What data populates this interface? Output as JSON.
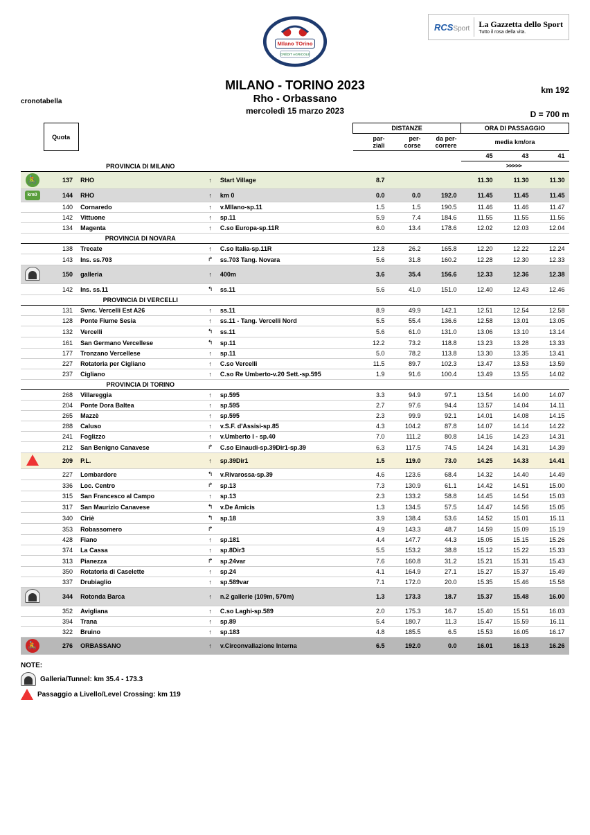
{
  "sponsors": {
    "rcs": "RCS",
    "rcs_suffix": "Sport",
    "gazzetta": "La Gazzetta dello Sport",
    "tagline": "Tutto il rosa della vita."
  },
  "header": {
    "cronotabella": "cronotabella",
    "title": "MILANO - TORINO 2023",
    "subtitle": "Rho - Orbassano",
    "date": "mercoledì 15 marzo 2023",
    "km": "km 192",
    "d": "D = 700 m"
  },
  "columns": {
    "quota": "Quota",
    "distanze": "DISTANZE",
    "parziali": "par-\nziali",
    "percorse": "per-\ncorse",
    "dapercorrere": "da per-\ncorrere",
    "passaggio": "ORA DI PASSAGGIO",
    "media": "media km/ora",
    "s45": "45",
    "s43": "43",
    "s41": "41",
    "arrows": ">>>>>"
  },
  "sections": [
    {
      "title": "PROVINCIA DI MILANO",
      "rows": [
        {
          "icon": "bike-green",
          "quota": "137",
          "loc": "RHO",
          "dir": "↑",
          "road": "Start Village",
          "pz": "8.7",
          "pc": "",
          "dp": "",
          "t45": "11.30",
          "t43": "11.30",
          "t41": "11.30",
          "style": "green"
        },
        {
          "icon": "km0",
          "quota": "144",
          "loc": "RHO",
          "dir": "↑",
          "road": "km 0",
          "pz": "0.0",
          "pc": "0.0",
          "dp": "192.0",
          "t45": "11.45",
          "t43": "11.45",
          "t41": "11.45",
          "style": "grey"
        },
        {
          "quota": "140",
          "loc": "Cornaredo",
          "dir": "↑",
          "road": "v.MIlano-sp.11",
          "pz": "1.5",
          "pc": "1.5",
          "dp": "190.5",
          "t45": "11.46",
          "t43": "11.46",
          "t41": "11.47"
        },
        {
          "quota": "142",
          "loc": "Vittuone",
          "dir": "↑",
          "road": "sp.11",
          "pz": "5.9",
          "pc": "7.4",
          "dp": "184.6",
          "t45": "11.55",
          "t43": "11.55",
          "t41": "11.56"
        },
        {
          "quota": "134",
          "loc": "Magenta",
          "dir": "↑",
          "road": "C.so Europa-sp.11R",
          "pz": "6.0",
          "pc": "13.4",
          "dp": "178.6",
          "t45": "12.02",
          "t43": "12.03",
          "t41": "12.04"
        }
      ]
    },
    {
      "title": "PROVINCIA DI NOVARA",
      "rows": [
        {
          "quota": "138",
          "loc": "Trecate",
          "dir": "↑",
          "road": "C.so Italia-sp.11R",
          "pz": "12.8",
          "pc": "26.2",
          "dp": "165.8",
          "t45": "12.20",
          "t43": "12.22",
          "t41": "12.24"
        },
        {
          "quota": "143",
          "loc": "Ins. ss.703",
          "dir": "↱",
          "road": "ss.703 Tang. Novara",
          "pz": "5.6",
          "pc": "31.8",
          "dp": "160.2",
          "t45": "12.28",
          "t43": "12.30",
          "t41": "12.33"
        },
        {
          "icon": "tunnel",
          "quota": "150",
          "loc": "galleria",
          "dir": "↑",
          "road": "400m",
          "pz": "3.6",
          "pc": "35.4",
          "dp": "156.6",
          "t45": "12.33",
          "t43": "12.36",
          "t41": "12.38",
          "style": "grey"
        },
        {
          "quota": "142",
          "loc": "Ins. ss.11",
          "dir": "↰",
          "road": "ss.11",
          "pz": "5.6",
          "pc": "41.0",
          "dp": "151.0",
          "t45": "12.40",
          "t43": "12.43",
          "t41": "12.46"
        }
      ]
    },
    {
      "title": "PROVINCIA DI VERCELLI",
      "rows": [
        {
          "quota": "131",
          "loc": "Svnc. Vercelli Est A26",
          "dir": "↑",
          "road": "ss.11",
          "pz": "8.9",
          "pc": "49.9",
          "dp": "142.1",
          "t45": "12.51",
          "t43": "12.54",
          "t41": "12.58"
        },
        {
          "quota": "128",
          "loc": "Ponte Fiume Sesia",
          "dir": "↑",
          "road": "ss.11 - Tang. Vercelli Nord",
          "pz": "5.5",
          "pc": "55.4",
          "dp": "136.6",
          "t45": "12.58",
          "t43": "13.01",
          "t41": "13.05"
        },
        {
          "quota": "132",
          "loc": "Vercelli",
          "dir": "↰",
          "road": "ss.11",
          "pz": "5.6",
          "pc": "61.0",
          "dp": "131.0",
          "t45": "13.06",
          "t43": "13.10",
          "t41": "13.14"
        },
        {
          "quota": "161",
          "loc": "San Germano Vercellese",
          "dir": "↰",
          "road": "sp.11",
          "pz": "12.2",
          "pc": "73.2",
          "dp": "118.8",
          "t45": "13.23",
          "t43": "13.28",
          "t41": "13.33"
        },
        {
          "quota": "177",
          "loc": "Tronzano Vercellese",
          "dir": "↑",
          "road": "sp.11",
          "pz": "5.0",
          "pc": "78.2",
          "dp": "113.8",
          "t45": "13.30",
          "t43": "13.35",
          "t41": "13.41"
        },
        {
          "quota": "227",
          "loc": "Rotatoria per Cigliano",
          "dir": "↑",
          "road": "C.so Vercelli",
          "pz": "11.5",
          "pc": "89.7",
          "dp": "102.3",
          "t45": "13.47",
          "t43": "13.53",
          "t41": "13.59"
        },
        {
          "quota": "237",
          "loc": "Cigliano",
          "dir": "↑",
          "road": "C.so Re Umberto-v.20 Sett.-sp.595",
          "pz": "1.9",
          "pc": "91.6",
          "dp": "100.4",
          "t45": "13.49",
          "t43": "13.55",
          "t41": "14.02"
        }
      ]
    },
    {
      "title": "PROVINCIA DI TORINO",
      "rows": [
        {
          "quota": "268",
          "loc": "Villareggia",
          "dir": "↑",
          "road": "sp.595",
          "pz": "3.3",
          "pc": "94.9",
          "dp": "97.1",
          "t45": "13.54",
          "t43": "14.00",
          "t41": "14.07"
        },
        {
          "quota": "204",
          "loc": "Ponte Dora Baltea",
          "dir": "↑",
          "road": "sp.595",
          "pz": "2.7",
          "pc": "97.6",
          "dp": "94.4",
          "t45": "13.57",
          "t43": "14.04",
          "t41": "14.11"
        },
        {
          "quota": "265",
          "loc": "Mazzè",
          "dir": "↑",
          "road": "sp.595",
          "pz": "2.3",
          "pc": "99.9",
          "dp": "92.1",
          "t45": "14.01",
          "t43": "14.08",
          "t41": "14.15"
        },
        {
          "quota": "288",
          "loc": "Caluso",
          "dir": "↑",
          "road": "v.S.F. d'Assisi-sp.85",
          "pz": "4.3",
          "pc": "104.2",
          "dp": "87.8",
          "t45": "14.07",
          "t43": "14.14",
          "t41": "14.22"
        },
        {
          "quota": "241",
          "loc": "Foglizzo",
          "dir": "↑",
          "road": "v.Umberto I - sp.40",
          "pz": "7.0",
          "pc": "111.2",
          "dp": "80.8",
          "t45": "14.16",
          "t43": "14.23",
          "t41": "14.31"
        },
        {
          "quota": "212",
          "loc": "San Benigno Canavese",
          "dir": "↱",
          "road": "C.so Einaudi-sp.39Dir1-sp.39",
          "pz": "6.3",
          "pc": "117.5",
          "dp": "74.5",
          "t45": "14.24",
          "t43": "14.31",
          "t41": "14.39"
        },
        {
          "icon": "pl",
          "quota": "209",
          "loc": "P.L.",
          "dir": "↑",
          "road": "sp.39Dir1",
          "pz": "1.5",
          "pc": "119.0",
          "dp": "73.0",
          "t45": "14.25",
          "t43": "14.33",
          "t41": "14.41",
          "style": "yellow"
        },
        {
          "quota": "227",
          "loc": "Lombardore",
          "dir": "↰",
          "road": "v.Rivarossa-sp.39",
          "pz": "4.6",
          "pc": "123.6",
          "dp": "68.4",
          "t45": "14.32",
          "t43": "14.40",
          "t41": "14.49"
        },
        {
          "quota": "336",
          "loc": "Loc. Centro",
          "dir": "↱",
          "road": "sp.13",
          "pz": "7.3",
          "pc": "130.9",
          "dp": "61.1",
          "t45": "14.42",
          "t43": "14.51",
          "t41": "15.00"
        },
        {
          "quota": "315",
          "loc": "San Francesco al Campo",
          "dir": "↑",
          "road": "sp.13",
          "pz": "2.3",
          "pc": "133.2",
          "dp": "58.8",
          "t45": "14.45",
          "t43": "14.54",
          "t41": "15.03"
        },
        {
          "quota": "317",
          "loc": "San Maurizio Canavese",
          "dir": "↰",
          "road": "v.De Amicis",
          "pz": "1.3",
          "pc": "134.5",
          "dp": "57.5",
          "t45": "14.47",
          "t43": "14.56",
          "t41": "15.05"
        },
        {
          "quota": "340",
          "loc": "Ciriè",
          "dir": "↰",
          "road": "sp.18",
          "pz": "3.9",
          "pc": "138.4",
          "dp": "53.6",
          "t45": "14.52",
          "t43": "15.01",
          "t41": "15.11"
        },
        {
          "quota": "353",
          "loc": "Robassomero",
          "dir": "↱",
          "road": "",
          "pz": "4.9",
          "pc": "143.3",
          "dp": "48.7",
          "t45": "14.59",
          "t43": "15.09",
          "t41": "15.19"
        },
        {
          "quota": "428",
          "loc": "Fiano",
          "dir": "↑",
          "road": "sp.181",
          "pz": "4.4",
          "pc": "147.7",
          "dp": "44.3",
          "t45": "15.05",
          "t43": "15.15",
          "t41": "15.26"
        },
        {
          "quota": "374",
          "loc": "La Cassa",
          "dir": "↑",
          "road": "sp.8Dir3",
          "pz": "5.5",
          "pc": "153.2",
          "dp": "38.8",
          "t45": "15.12",
          "t43": "15.22",
          "t41": "15.33"
        },
        {
          "quota": "313",
          "loc": "Pianezza",
          "dir": "↱",
          "road": "sp.24var",
          "pz": "7.6",
          "pc": "160.8",
          "dp": "31.2",
          "t45": "15.21",
          "t43": "15.31",
          "t41": "15.43"
        },
        {
          "quota": "350",
          "loc": "Rotatoria  di Caselette",
          "dir": "↑",
          "road": "sp.24",
          "pz": "4.1",
          "pc": "164.9",
          "dp": "27.1",
          "t45": "15.27",
          "t43": "15.37",
          "t41": "15.49"
        },
        {
          "quota": "337",
          "loc": "Drubiaglio",
          "dir": "↑",
          "road": "sp.589var",
          "pz": "7.1",
          "pc": "172.0",
          "dp": "20.0",
          "t45": "15.35",
          "t43": "15.46",
          "t41": "15.58"
        },
        {
          "icon": "tunnel",
          "quota": "344",
          "loc": "Rotonda Barca",
          "dir": "↑",
          "road": "n.2 gallerie (109m, 570m)",
          "pz": "1.3",
          "pc": "173.3",
          "dp": "18.7",
          "t45": "15.37",
          "t43": "15.48",
          "t41": "16.00",
          "style": "grey"
        },
        {
          "quota": "352",
          "loc": "Avigliana",
          "dir": "↑",
          "road": "C.so Laghi-sp.589",
          "pz": "2.0",
          "pc": "175.3",
          "dp": "16.7",
          "t45": "15.40",
          "t43": "15.51",
          "t41": "16.03"
        },
        {
          "quota": "394",
          "loc": "Trana",
          "dir": "↑",
          "road": "sp.89",
          "pz": "5.4",
          "pc": "180.7",
          "dp": "11.3",
          "t45": "15.47",
          "t43": "15.59",
          "t41": "16.11"
        },
        {
          "quota": "322",
          "loc": "Bruino",
          "dir": "↑",
          "road": "sp.183",
          "pz": "4.8",
          "pc": "185.5",
          "dp": "6.5",
          "t45": "15.53",
          "t43": "16.05",
          "t41": "16.17"
        },
        {
          "icon": "bike-red",
          "quota": "276",
          "loc": "ORBASSANO",
          "dir": "↑",
          "road": "v.Circonvallazione Interna",
          "pz": "6.5",
          "pc": "192.0",
          "dp": "0.0",
          "t45": "16.01",
          "t43": "16.13",
          "t41": "16.26",
          "style": "dgrey"
        }
      ]
    }
  ],
  "notes": {
    "heading": "NOTE:",
    "tunnel": "Galleria/Tunnel:  km 35.4 - 173.3",
    "pl": "Passaggio a Livello/Level Crossing: km 119"
  }
}
